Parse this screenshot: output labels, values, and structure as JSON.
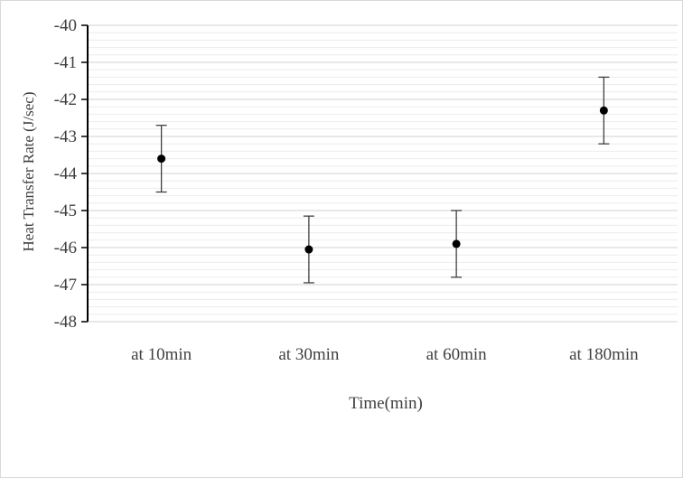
{
  "chart_data": {
    "type": "scatter",
    "categories": [
      "at 10min",
      "at 30min",
      "at 60min",
      "at 180min"
    ],
    "values": [
      -43.6,
      -46.05,
      -45.9,
      -42.3
    ],
    "error": [
      0.9,
      0.9,
      0.9,
      0.9
    ],
    "xlabel": "Time(min)",
    "ylabel": "Heat Transfer Rate (J/sec)",
    "ylim": [
      -48,
      -40
    ],
    "yticks": [
      "-40",
      "-41",
      "-42",
      "-43",
      "-44",
      "-45",
      "-46",
      "-47",
      "-48"
    ],
    "grid": true,
    "minor_grid": true,
    "marker_color": "#000000",
    "grid_color": "#d9d9d9"
  }
}
